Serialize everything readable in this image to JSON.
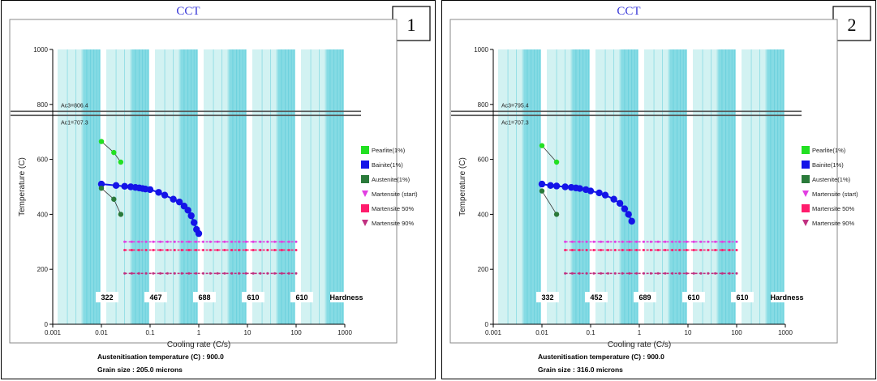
{
  "chart_data": [
    {
      "panel_number": "1",
      "type": "scatter",
      "title": "CCT",
      "xlabel": "Cooling rate (C/s)",
      "ylabel": "Temperature (C)",
      "x_scale": "log",
      "xlim": [
        0.001,
        1000
      ],
      "ylim": [
        0,
        1000
      ],
      "x_ticks": [
        "0.001",
        "0.01",
        "0.1",
        "1",
        "10",
        "100",
        "1000"
      ],
      "y_ticks": [
        "0",
        "200",
        "400",
        "600",
        "800",
        "1000"
      ],
      "ref_lines": [
        {
          "label": "Ac3=806.4",
          "y": 775
        },
        {
          "label": "Ac1=707.3",
          "y": 760
        }
      ],
      "legend": {
        "placement": "right",
        "entries": [
          {
            "label": "Pearlite(1%)",
            "color": "#22e022",
            "marker": "square"
          },
          {
            "label": "Bainite(1%)",
            "color": "#1414e8",
            "marker": "square"
          },
          {
            "label": "Austenite(1%)",
            "color": "#2a7a3a",
            "marker": "square"
          },
          {
            "label": "Martensite (start)",
            "color": "#e23ee2",
            "marker": "triangle"
          },
          {
            "label": "Martensite 50%",
            "color": "#ff1c6c",
            "marker": "square"
          },
          {
            "label": "Martensite 90%",
            "color": "#c03080",
            "marker": "triangle"
          }
        ]
      },
      "series": [
        {
          "name": "Pearlite(1%)",
          "color": "#22e022",
          "points": [
            [
              0.01,
              665
            ],
            [
              0.018,
              625
            ],
            [
              0.025,
              590
            ]
          ]
        },
        {
          "name": "Bainite(1%)",
          "color": "#1414e8",
          "points": [
            [
              0.01,
              510
            ],
            [
              0.02,
              505
            ],
            [
              0.03,
              502
            ],
            [
              0.04,
              500
            ],
            [
              0.05,
              498
            ],
            [
              0.06,
              496
            ],
            [
              0.07,
              494
            ],
            [
              0.08,
              492
            ],
            [
              0.1,
              490
            ],
            [
              0.15,
              480
            ],
            [
              0.2,
              470
            ],
            [
              0.3,
              455
            ],
            [
              0.4,
              445
            ],
            [
              0.5,
              430
            ],
            [
              0.6,
              415
            ],
            [
              0.7,
              395
            ],
            [
              0.8,
              370
            ],
            [
              0.9,
              345
            ],
            [
              1.0,
              330
            ]
          ]
        },
        {
          "name": "Austenite(1%)",
          "color": "#2a7a3a",
          "points": [
            [
              0.01,
              495
            ],
            [
              0.018,
              455
            ],
            [
              0.025,
              400
            ]
          ]
        },
        {
          "name": "Martensite (start)",
          "color": "#e23ee2",
          "level": 300,
          "x_range": [
            0.03,
            100
          ]
        },
        {
          "name": "Martensite 50%",
          "color": "#ff1c6c",
          "level": 270,
          "x_range": [
            0.03,
            100
          ]
        },
        {
          "name": "Martensite 90%",
          "color": "#c03080",
          "level": 185,
          "x_range": [
            0.03,
            100
          ]
        }
      ],
      "hardness_row": {
        "x": [
          0.01,
          0.1,
          1,
          10,
          100
        ],
        "values": [
          "322",
          "467",
          "688",
          "610",
          "610"
        ],
        "label": "Hardness"
      },
      "footer": {
        "line1": "Austenitisation temperature (C) : 900.0",
        "line2": "Grain size : 205.0 microns"
      }
    },
    {
      "panel_number": "2",
      "type": "scatter",
      "title": "CCT",
      "xlabel": "Cooling rate (C/s)",
      "ylabel": "Temperature (C)",
      "x_scale": "log",
      "xlim": [
        0.001,
        1000
      ],
      "ylim": [
        0,
        1000
      ],
      "x_ticks": [
        "0.001",
        "0.01",
        "0.1",
        "1",
        "10",
        "100",
        "1000"
      ],
      "y_ticks": [
        "0",
        "200",
        "400",
        "600",
        "800",
        "1000"
      ],
      "ref_lines": [
        {
          "label": "Ac3=795.4",
          "y": 775
        },
        {
          "label": "Ac1=707.3",
          "y": 760
        }
      ],
      "legend": {
        "placement": "right",
        "entries": [
          {
            "label": "Pearlite(1%)",
            "color": "#22e022",
            "marker": "square"
          },
          {
            "label": "Bainite(1%)",
            "color": "#1414e8",
            "marker": "square"
          },
          {
            "label": "Austenite(1%)",
            "color": "#2a7a3a",
            "marker": "square"
          },
          {
            "label": "Martensite (start)",
            "color": "#e23ee2",
            "marker": "triangle"
          },
          {
            "label": "Martensite 50%",
            "color": "#ff1c6c",
            "marker": "square"
          },
          {
            "label": "Martensite 90%",
            "color": "#c03080",
            "marker": "triangle"
          }
        ]
      },
      "series": [
        {
          "name": "Pearlite(1%)",
          "color": "#22e022",
          "points": [
            [
              0.01,
              650
            ],
            [
              0.02,
              590
            ]
          ]
        },
        {
          "name": "Bainite(1%)",
          "color": "#1414e8",
          "points": [
            [
              0.01,
              510
            ],
            [
              0.015,
              505
            ],
            [
              0.02,
              503
            ],
            [
              0.03,
              500
            ],
            [
              0.04,
              498
            ],
            [
              0.05,
              496
            ],
            [
              0.06,
              494
            ],
            [
              0.08,
              490
            ],
            [
              0.1,
              485
            ],
            [
              0.15,
              478
            ],
            [
              0.2,
              470
            ],
            [
              0.3,
              455
            ],
            [
              0.4,
              440
            ],
            [
              0.5,
              420
            ],
            [
              0.6,
              400
            ],
            [
              0.7,
              375
            ]
          ]
        },
        {
          "name": "Austenite(1%)",
          "color": "#2a7a3a",
          "points": [
            [
              0.01,
              485
            ],
            [
              0.02,
              400
            ]
          ]
        },
        {
          "name": "Martensite (start)",
          "color": "#e23ee2",
          "level": 300,
          "x_range": [
            0.03,
            100
          ]
        },
        {
          "name": "Martensite 50%",
          "color": "#ff1c6c",
          "level": 270,
          "x_range": [
            0.03,
            100
          ]
        },
        {
          "name": "Martensite 90%",
          "color": "#c03080",
          "level": 185,
          "x_range": [
            0.03,
            100
          ]
        }
      ],
      "hardness_row": {
        "x": [
          0.01,
          0.1,
          1,
          10,
          100
        ],
        "values": [
          "332",
          "452",
          "689",
          "610",
          "610"
        ],
        "label": "Hardness"
      },
      "footer": {
        "line1": "Austenitisation temperature (C) : 900.0",
        "line2": "Grain size : 316.0 microns"
      }
    }
  ],
  "colors": {
    "band_light": "#d2f2f2",
    "band_cyan": "#86dbe4",
    "band_line": "#4cc7d6",
    "ref_line": "#555555",
    "hardness_bg": "#ffffff"
  }
}
